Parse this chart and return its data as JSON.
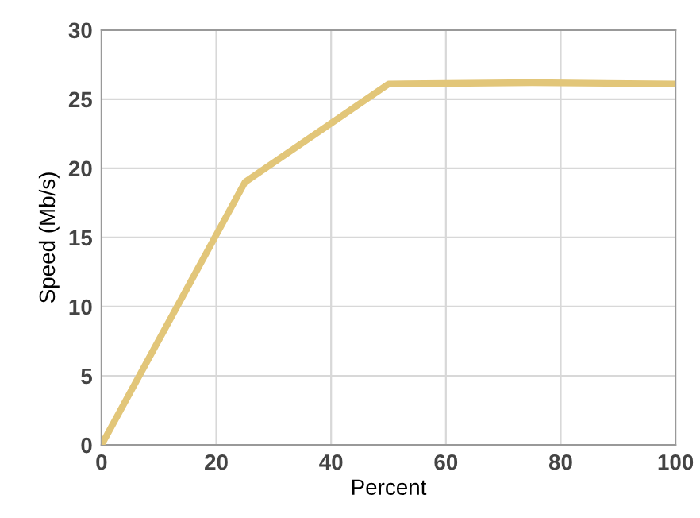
{
  "chart_data": {
    "type": "line",
    "xlabel": "Percent",
    "ylabel": "Speed (Mb/s)",
    "x": [
      0,
      25,
      50,
      75,
      100
    ],
    "series": [
      {
        "color": "#e2c679",
        "values": [
          0,
          19,
          26.1,
          26.2,
          26.1
        ]
      }
    ],
    "xlim": [
      0,
      100
    ],
    "xticks": [
      0,
      20,
      40,
      60,
      80,
      100
    ],
    "ylim": [
      0,
      30
    ],
    "yticks": [
      0,
      5,
      10,
      15,
      20,
      25,
      30
    ],
    "grid": true,
    "legend": false
  }
}
